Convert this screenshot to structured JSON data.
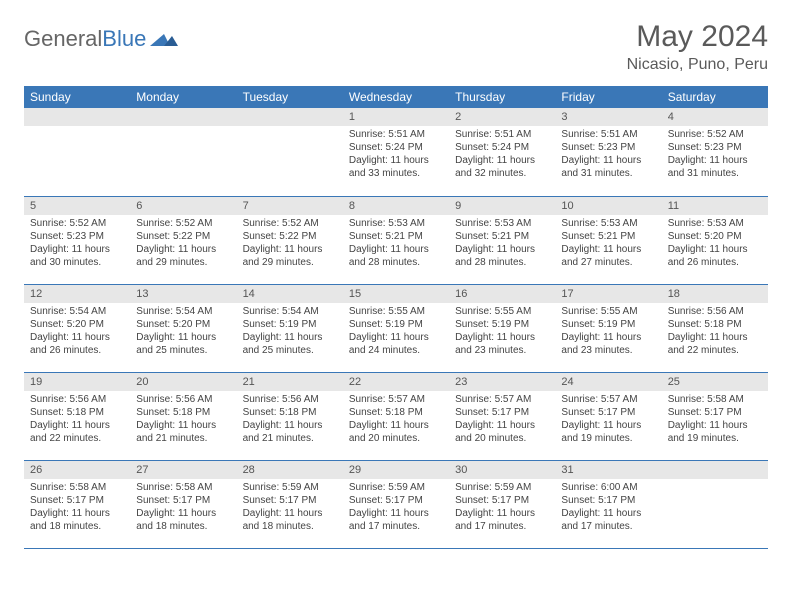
{
  "brand": {
    "general": "General",
    "blue": "Blue"
  },
  "title": "May 2024",
  "location": "Nicasio, Puno, Peru",
  "colors": {
    "header_bg": "#3a77b7",
    "header_text": "#ffffff",
    "daynum_bg": "#e7e7e7",
    "text": "#444444",
    "rule": "#3a77b7",
    "page_bg": "#ffffff"
  },
  "day_headers": [
    "Sunday",
    "Monday",
    "Tuesday",
    "Wednesday",
    "Thursday",
    "Friday",
    "Saturday"
  ],
  "weeks": [
    [
      {
        "n": "",
        "sunrise": "",
        "sunset": "",
        "daylight": ""
      },
      {
        "n": "",
        "sunrise": "",
        "sunset": "",
        "daylight": ""
      },
      {
        "n": "",
        "sunrise": "",
        "sunset": "",
        "daylight": ""
      },
      {
        "n": "1",
        "sunrise": "Sunrise: 5:51 AM",
        "sunset": "Sunset: 5:24 PM",
        "daylight": "Daylight: 11 hours and 33 minutes."
      },
      {
        "n": "2",
        "sunrise": "Sunrise: 5:51 AM",
        "sunset": "Sunset: 5:24 PM",
        "daylight": "Daylight: 11 hours and 32 minutes."
      },
      {
        "n": "3",
        "sunrise": "Sunrise: 5:51 AM",
        "sunset": "Sunset: 5:23 PM",
        "daylight": "Daylight: 11 hours and 31 minutes."
      },
      {
        "n": "4",
        "sunrise": "Sunrise: 5:52 AM",
        "sunset": "Sunset: 5:23 PM",
        "daylight": "Daylight: 11 hours and 31 minutes."
      }
    ],
    [
      {
        "n": "5",
        "sunrise": "Sunrise: 5:52 AM",
        "sunset": "Sunset: 5:23 PM",
        "daylight": "Daylight: 11 hours and 30 minutes."
      },
      {
        "n": "6",
        "sunrise": "Sunrise: 5:52 AM",
        "sunset": "Sunset: 5:22 PM",
        "daylight": "Daylight: 11 hours and 29 minutes."
      },
      {
        "n": "7",
        "sunrise": "Sunrise: 5:52 AM",
        "sunset": "Sunset: 5:22 PM",
        "daylight": "Daylight: 11 hours and 29 minutes."
      },
      {
        "n": "8",
        "sunrise": "Sunrise: 5:53 AM",
        "sunset": "Sunset: 5:21 PM",
        "daylight": "Daylight: 11 hours and 28 minutes."
      },
      {
        "n": "9",
        "sunrise": "Sunrise: 5:53 AM",
        "sunset": "Sunset: 5:21 PM",
        "daylight": "Daylight: 11 hours and 28 minutes."
      },
      {
        "n": "10",
        "sunrise": "Sunrise: 5:53 AM",
        "sunset": "Sunset: 5:21 PM",
        "daylight": "Daylight: 11 hours and 27 minutes."
      },
      {
        "n": "11",
        "sunrise": "Sunrise: 5:53 AM",
        "sunset": "Sunset: 5:20 PM",
        "daylight": "Daylight: 11 hours and 26 minutes."
      }
    ],
    [
      {
        "n": "12",
        "sunrise": "Sunrise: 5:54 AM",
        "sunset": "Sunset: 5:20 PM",
        "daylight": "Daylight: 11 hours and 26 minutes."
      },
      {
        "n": "13",
        "sunrise": "Sunrise: 5:54 AM",
        "sunset": "Sunset: 5:20 PM",
        "daylight": "Daylight: 11 hours and 25 minutes."
      },
      {
        "n": "14",
        "sunrise": "Sunrise: 5:54 AM",
        "sunset": "Sunset: 5:19 PM",
        "daylight": "Daylight: 11 hours and 25 minutes."
      },
      {
        "n": "15",
        "sunrise": "Sunrise: 5:55 AM",
        "sunset": "Sunset: 5:19 PM",
        "daylight": "Daylight: 11 hours and 24 minutes."
      },
      {
        "n": "16",
        "sunrise": "Sunrise: 5:55 AM",
        "sunset": "Sunset: 5:19 PM",
        "daylight": "Daylight: 11 hours and 23 minutes."
      },
      {
        "n": "17",
        "sunrise": "Sunrise: 5:55 AM",
        "sunset": "Sunset: 5:19 PM",
        "daylight": "Daylight: 11 hours and 23 minutes."
      },
      {
        "n": "18",
        "sunrise": "Sunrise: 5:56 AM",
        "sunset": "Sunset: 5:18 PM",
        "daylight": "Daylight: 11 hours and 22 minutes."
      }
    ],
    [
      {
        "n": "19",
        "sunrise": "Sunrise: 5:56 AM",
        "sunset": "Sunset: 5:18 PM",
        "daylight": "Daylight: 11 hours and 22 minutes."
      },
      {
        "n": "20",
        "sunrise": "Sunrise: 5:56 AM",
        "sunset": "Sunset: 5:18 PM",
        "daylight": "Daylight: 11 hours and 21 minutes."
      },
      {
        "n": "21",
        "sunrise": "Sunrise: 5:56 AM",
        "sunset": "Sunset: 5:18 PM",
        "daylight": "Daylight: 11 hours and 21 minutes."
      },
      {
        "n": "22",
        "sunrise": "Sunrise: 5:57 AM",
        "sunset": "Sunset: 5:18 PM",
        "daylight": "Daylight: 11 hours and 20 minutes."
      },
      {
        "n": "23",
        "sunrise": "Sunrise: 5:57 AM",
        "sunset": "Sunset: 5:17 PM",
        "daylight": "Daylight: 11 hours and 20 minutes."
      },
      {
        "n": "24",
        "sunrise": "Sunrise: 5:57 AM",
        "sunset": "Sunset: 5:17 PM",
        "daylight": "Daylight: 11 hours and 19 minutes."
      },
      {
        "n": "25",
        "sunrise": "Sunrise: 5:58 AM",
        "sunset": "Sunset: 5:17 PM",
        "daylight": "Daylight: 11 hours and 19 minutes."
      }
    ],
    [
      {
        "n": "26",
        "sunrise": "Sunrise: 5:58 AM",
        "sunset": "Sunset: 5:17 PM",
        "daylight": "Daylight: 11 hours and 18 minutes."
      },
      {
        "n": "27",
        "sunrise": "Sunrise: 5:58 AM",
        "sunset": "Sunset: 5:17 PM",
        "daylight": "Daylight: 11 hours and 18 minutes."
      },
      {
        "n": "28",
        "sunrise": "Sunrise: 5:59 AM",
        "sunset": "Sunset: 5:17 PM",
        "daylight": "Daylight: 11 hours and 18 minutes."
      },
      {
        "n": "29",
        "sunrise": "Sunrise: 5:59 AM",
        "sunset": "Sunset: 5:17 PM",
        "daylight": "Daylight: 11 hours and 17 minutes."
      },
      {
        "n": "30",
        "sunrise": "Sunrise: 5:59 AM",
        "sunset": "Sunset: 5:17 PM",
        "daylight": "Daylight: 11 hours and 17 minutes."
      },
      {
        "n": "31",
        "sunrise": "Sunrise: 6:00 AM",
        "sunset": "Sunset: 5:17 PM",
        "daylight": "Daylight: 11 hours and 17 minutes."
      },
      {
        "n": "",
        "sunrise": "",
        "sunset": "",
        "daylight": ""
      }
    ]
  ]
}
